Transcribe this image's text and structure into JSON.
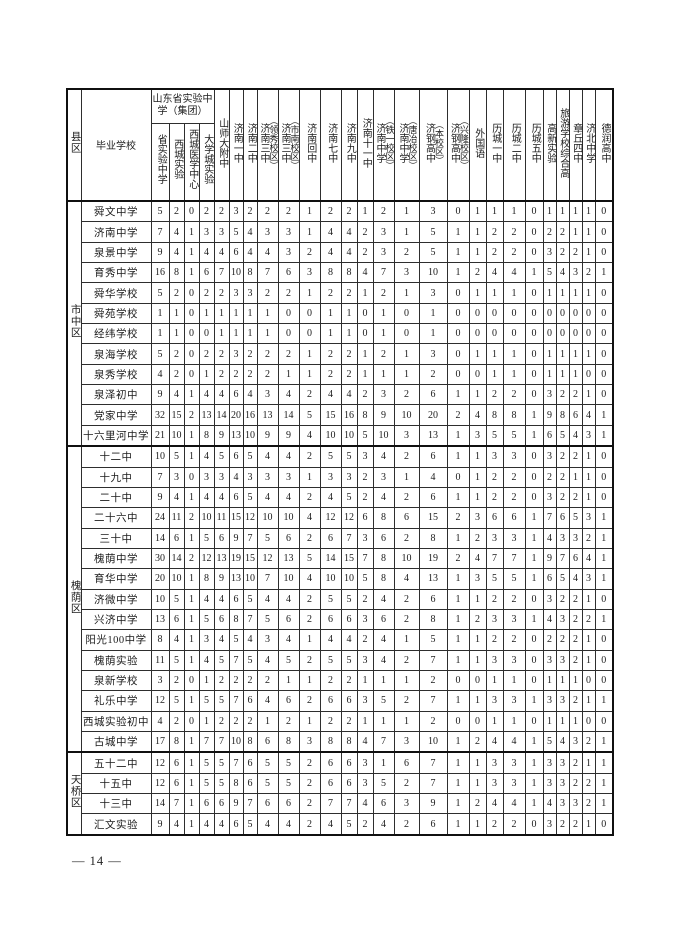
{
  "page": {
    "number": "— 14 —"
  },
  "table": {
    "corner": {
      "district_label": "县区",
      "school_label": "毕业学校"
    },
    "group": {
      "label": "山东省实验中学（集团）"
    },
    "columns": [
      {
        "name": "省实验中学",
        "grouped": true
      },
      {
        "name": "西城实验",
        "grouped": true
      },
      {
        "name": "西城医学中心",
        "grouped": true
      },
      {
        "name": "大学城实验",
        "grouped": true
      },
      {
        "name": "山师大附中"
      },
      {
        "name": "济南一中"
      },
      {
        "name": "济南二中"
      },
      {
        "name": "济南三中",
        "campus": "（领秀校区）"
      },
      {
        "name": "济南三中",
        "campus": "（市南校区）"
      },
      {
        "name": "济南回中"
      },
      {
        "name": "济南七中"
      },
      {
        "name": "济南九中"
      },
      {
        "name": "济南十一中"
      },
      {
        "name": "济南中学",
        "campus": "（铁一校区）"
      },
      {
        "name": "济南中学",
        "campus": "（唐冶校区）"
      },
      {
        "name": "济钢高中",
        "campus": "（本校区）"
      },
      {
        "name": "济钢高中",
        "campus": "（兴隆校区）"
      },
      {
        "name": "外国语"
      },
      {
        "name": "历城一中"
      },
      {
        "name": "历城二中"
      },
      {
        "name": "历城五中"
      },
      {
        "name": "高新实验"
      },
      {
        "name": "旅游学校综合高"
      },
      {
        "name": "章丘四中"
      },
      {
        "name": "济北中学"
      },
      {
        "name": "德润高中"
      }
    ],
    "districts": [
      {
        "name": "市中区",
        "rows": [
          {
            "school": "舜文中学",
            "values": [
              5,
              2,
              0,
              2,
              2,
              3,
              2,
              2,
              2,
              1,
              2,
              2,
              1,
              2,
              1,
              3,
              0,
              1,
              1,
              1,
              0,
              1,
              1,
              1,
              1,
              0
            ]
          },
          {
            "school": "济南中学",
            "values": [
              7,
              4,
              1,
              3,
              3,
              5,
              4,
              3,
              3,
              1,
              4,
              4,
              2,
              3,
              1,
              5,
              1,
              1,
              2,
              2,
              0,
              2,
              2,
              1,
              1,
              0
            ]
          },
          {
            "school": "泉景中学",
            "values": [
              9,
              4,
              1,
              4,
              4,
              6,
              4,
              4,
              3,
              2,
              4,
              4,
              2,
              3,
              2,
              5,
              1,
              1,
              2,
              2,
              0,
              3,
              2,
              2,
              1,
              0
            ]
          },
          {
            "school": "育秀中学",
            "values": [
              16,
              8,
              1,
              6,
              7,
              10,
              8,
              7,
              6,
              3,
              8,
              8,
              4,
              7,
              3,
              10,
              1,
              2,
              4,
              4,
              1,
              5,
              4,
              3,
              2,
              1
            ]
          },
          {
            "school": "舜华学校",
            "values": [
              5,
              2,
              0,
              2,
              2,
              3,
              3,
              2,
              2,
              1,
              2,
              2,
              1,
              2,
              1,
              3,
              0,
              1,
              1,
              1,
              0,
              1,
              1,
              1,
              1,
              0
            ]
          },
          {
            "school": "舜苑学校",
            "values": [
              1,
              1,
              0,
              1,
              1,
              1,
              1,
              1,
              0,
              0,
              1,
              1,
              0,
              1,
              0,
              1,
              0,
              0,
              0,
              0,
              0,
              0,
              0,
              0,
              0,
              0
            ]
          },
          {
            "school": "经纬学校",
            "values": [
              1,
              1,
              0,
              0,
              1,
              1,
              1,
              1,
              0,
              0,
              1,
              1,
              0,
              1,
              0,
              1,
              0,
              0,
              0,
              0,
              0,
              0,
              0,
              0,
              0,
              0
            ]
          },
          {
            "school": "泉海学校",
            "values": [
              5,
              2,
              0,
              2,
              2,
              3,
              2,
              2,
              2,
              1,
              2,
              2,
              1,
              2,
              1,
              3,
              0,
              1,
              1,
              1,
              0,
              1,
              1,
              1,
              1,
              0
            ]
          },
          {
            "school": "泉秀学校",
            "values": [
              4,
              2,
              0,
              1,
              2,
              2,
              2,
              2,
              1,
              1,
              2,
              2,
              1,
              1,
              1,
              2,
              0,
              0,
              1,
              1,
              0,
              1,
              1,
              1,
              0,
              0
            ]
          },
          {
            "school": "泉泽初中",
            "values": [
              9,
              4,
              1,
              4,
              4,
              6,
              4,
              3,
              4,
              2,
              4,
              4,
              2,
              3,
              2,
              6,
              1,
              1,
              2,
              2,
              0,
              3,
              2,
              2,
              1,
              0
            ]
          },
          {
            "school": "党家中学",
            "values": [
              32,
              15,
              2,
              13,
              14,
              20,
              16,
              13,
              14,
              5,
              15,
              16,
              8,
              9,
              10,
              20,
              2,
              4,
              8,
              8,
              1,
              9,
              8,
              6,
              4,
              1
            ]
          },
          {
            "school": "十六里河中学",
            "values": [
              21,
              10,
              1,
              8,
              9,
              13,
              10,
              9,
              9,
              4,
              10,
              10,
              5,
              10,
              3,
              13,
              1,
              3,
              5,
              5,
              1,
              6,
              5,
              4,
              3,
              1
            ]
          }
        ]
      },
      {
        "name": "槐荫区",
        "rows": [
          {
            "school": "十二中",
            "values": [
              10,
              5,
              1,
              4,
              5,
              6,
              5,
              4,
              4,
              2,
              5,
              5,
              3,
              4,
              2,
              6,
              1,
              1,
              3,
              3,
              0,
              3,
              2,
              2,
              1,
              0
            ]
          },
          {
            "school": "十九中",
            "values": [
              7,
              3,
              0,
              3,
              3,
              4,
              3,
              3,
              3,
              1,
              3,
              3,
              2,
              3,
              1,
              4,
              0,
              1,
              2,
              2,
              0,
              2,
              2,
              1,
              1,
              0
            ]
          },
          {
            "school": "二十中",
            "values": [
              9,
              4,
              1,
              4,
              4,
              6,
              5,
              4,
              4,
              2,
              4,
              5,
              2,
              4,
              2,
              6,
              1,
              1,
              2,
              2,
              0,
              3,
              2,
              2,
              1,
              0
            ]
          },
          {
            "school": "二十六中",
            "values": [
              24,
              11,
              2,
              10,
              11,
              15,
              12,
              10,
              10,
              4,
              12,
              12,
              6,
              8,
              6,
              15,
              2,
              3,
              6,
              6,
              1,
              7,
              6,
              5,
              3,
              1
            ]
          },
          {
            "school": "三十中",
            "values": [
              14,
              6,
              1,
              5,
              6,
              9,
              7,
              5,
              6,
              2,
              6,
              7,
              3,
              6,
              2,
              8,
              1,
              2,
              3,
              3,
              1,
              4,
              3,
              3,
              2,
              1
            ]
          },
          {
            "school": "槐荫中学",
            "values": [
              30,
              14,
              2,
              12,
              13,
              19,
              15,
              12,
              13,
              5,
              14,
              15,
              7,
              8,
              10,
              19,
              2,
              4,
              7,
              7,
              1,
              9,
              7,
              6,
              4,
              1
            ]
          },
          {
            "school": "育华中学",
            "values": [
              20,
              10,
              1,
              8,
              9,
              13,
              10,
              7,
              10,
              4,
              10,
              10,
              5,
              8,
              4,
              13,
              1,
              3,
              5,
              5,
              1,
              6,
              5,
              4,
              3,
              1
            ]
          },
          {
            "school": "济微中学",
            "values": [
              10,
              5,
              1,
              4,
              4,
              6,
              5,
              4,
              4,
              2,
              5,
              5,
              2,
              4,
              2,
              6,
              1,
              1,
              2,
              2,
              0,
              3,
              2,
              2,
              1,
              0
            ]
          },
          {
            "school": "兴济中学",
            "values": [
              13,
              6,
              1,
              5,
              6,
              8,
              7,
              5,
              6,
              2,
              6,
              6,
              3,
              6,
              2,
              8,
              1,
              2,
              3,
              3,
              1,
              4,
              3,
              2,
              2,
              1
            ]
          },
          {
            "school": "阳光100中学",
            "values": [
              8,
              4,
              1,
              3,
              4,
              5,
              4,
              3,
              4,
              1,
              4,
              4,
              2,
              4,
              1,
              5,
              1,
              1,
              2,
              2,
              0,
              2,
              2,
              2,
              1,
              0
            ]
          },
          {
            "school": "槐荫实验",
            "values": [
              11,
              5,
              1,
              4,
              5,
              7,
              5,
              4,
              5,
              2,
              5,
              5,
              3,
              4,
              2,
              7,
              1,
              1,
              3,
              3,
              0,
              3,
              3,
              2,
              1,
              0
            ]
          },
          {
            "school": "泉新学校",
            "values": [
              3,
              2,
              0,
              1,
              2,
              2,
              2,
              2,
              1,
              1,
              2,
              2,
              1,
              1,
              1,
              2,
              0,
              0,
              1,
              1,
              0,
              1,
              1,
              1,
              0,
              0
            ]
          },
          {
            "school": "礼乐中学",
            "values": [
              12,
              5,
              1,
              5,
              5,
              7,
              6,
              4,
              6,
              2,
              6,
              6,
              3,
              5,
              2,
              7,
              1,
              1,
              3,
              3,
              1,
              3,
              3,
              2,
              1,
              1
            ]
          },
          {
            "school": "西城实验初中",
            "values": [
              4,
              2,
              0,
              1,
              2,
              2,
              2,
              1,
              2,
              1,
              2,
              2,
              1,
              1,
              1,
              2,
              0,
              0,
              1,
              1,
              0,
              1,
              1,
              1,
              0,
              0
            ]
          },
          {
            "school": "古城中学",
            "values": [
              17,
              8,
              1,
              7,
              7,
              10,
              8,
              6,
              8,
              3,
              8,
              8,
              4,
              7,
              3,
              10,
              1,
              2,
              4,
              4,
              1,
              5,
              4,
              3,
              2,
              1
            ]
          }
        ]
      },
      {
        "name": "天桥区",
        "rows": [
          {
            "school": "五十二中",
            "values": [
              12,
              6,
              1,
              5,
              5,
              7,
              6,
              5,
              5,
              2,
              6,
              6,
              3,
              1,
              6,
              7,
              1,
              1,
              3,
              3,
              1,
              3,
              3,
              2,
              1,
              1
            ]
          },
          {
            "school": "十五中",
            "values": [
              12,
              6,
              1,
              5,
              5,
              8,
              6,
              5,
              5,
              2,
              6,
              6,
              3,
              5,
              2,
              7,
              1,
              1,
              3,
              3,
              1,
              3,
              3,
              2,
              2,
              1
            ]
          },
          {
            "school": "十三中",
            "values": [
              14,
              7,
              1,
              6,
              6,
              9,
              7,
              6,
              6,
              2,
              7,
              7,
              4,
              6,
              3,
              9,
              1,
              2,
              4,
              4,
              1,
              4,
              3,
              3,
              2,
              1
            ]
          },
          {
            "school": "汇文实验",
            "values": [
              9,
              4,
              1,
              4,
              4,
              6,
              5,
              4,
              4,
              2,
              4,
              5,
              2,
              4,
              2,
              6,
              1,
              1,
              2,
              2,
              0,
              3,
              2,
              2,
              1,
              0
            ]
          }
        ]
      }
    ]
  }
}
